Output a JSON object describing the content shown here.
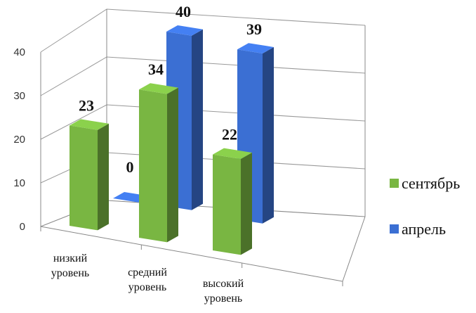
{
  "chart_data": {
    "type": "bar",
    "title": "",
    "xlabel": "",
    "ylabel": "",
    "ylim": [
      0,
      40
    ],
    "yticks": [
      0,
      10,
      20,
      30,
      40
    ],
    "grid": true,
    "legend_position": "right",
    "categories": [
      [
        "низкий",
        "уровень"
      ],
      [
        "средний",
        "уровень"
      ],
      [
        "высокий",
        "уровень"
      ]
    ],
    "series": [
      {
        "name": "сентябрь",
        "values": [
          23,
          34,
          22
        ],
        "color": "#79b642"
      },
      {
        "name": "апрель",
        "values": [
          0,
          40,
          39
        ],
        "color": "#3b6fd3"
      }
    ]
  }
}
